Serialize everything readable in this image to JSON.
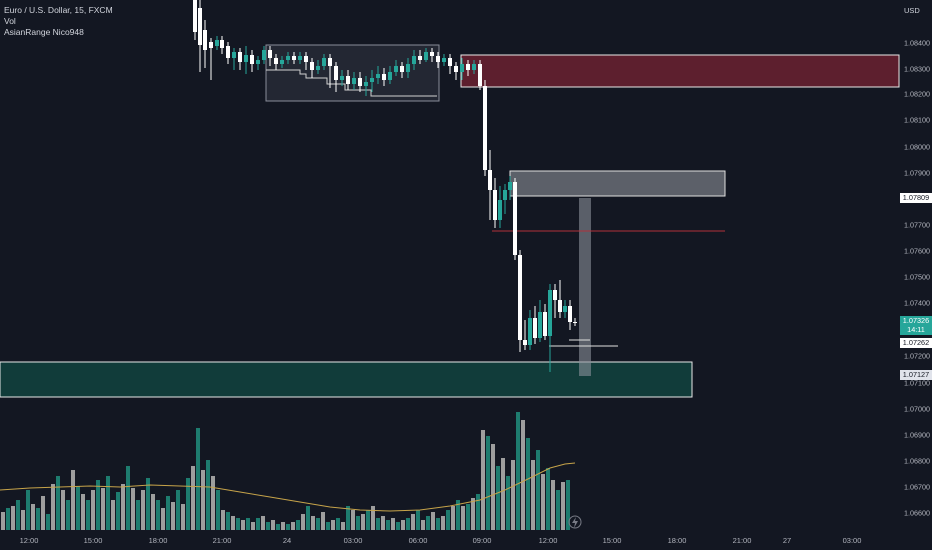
{
  "legend": {
    "symbol": "Euro / U.S. Dollar, 15, FXCM",
    "vol": "Vol",
    "indicator": "AsianRange Nico948"
  },
  "price_axis": {
    "unit": "USD",
    "ticks": [
      "1.08400",
      "1.08300",
      "1.08200",
      "1.08100",
      "1.08000",
      "1.07900",
      "1.07700",
      "1.07600",
      "1.07500",
      "1.07400",
      "1.07200",
      "1.07100",
      "1.07000",
      "1.06900",
      "1.06800",
      "1.06700",
      "1.06600"
    ],
    "labels": {
      "level1": "1.07809",
      "current_price": "1.07326",
      "countdown": "14:11",
      "level2": "1.07262",
      "level3": "1.07127"
    }
  },
  "time_axis": {
    "ticks": [
      "12:00",
      "15:00",
      "18:00",
      "21:00",
      "24",
      "03:00",
      "06:00",
      "09:00",
      "12:00",
      "15:00",
      "18:00",
      "21:00",
      "27",
      "03:00"
    ]
  },
  "colors": {
    "background": "#131722",
    "up": "#26a69a",
    "down": "#ffffff",
    "vol_up": "#1e7c6f",
    "vol_down": "#9e9e9e",
    "supply_zone": "#5d1f2e",
    "demand_zone": "#113c3a",
    "range_box": "#2a2e39",
    "ma": "#c7a44a"
  },
  "icons": [
    "lightning-icon"
  ]
}
